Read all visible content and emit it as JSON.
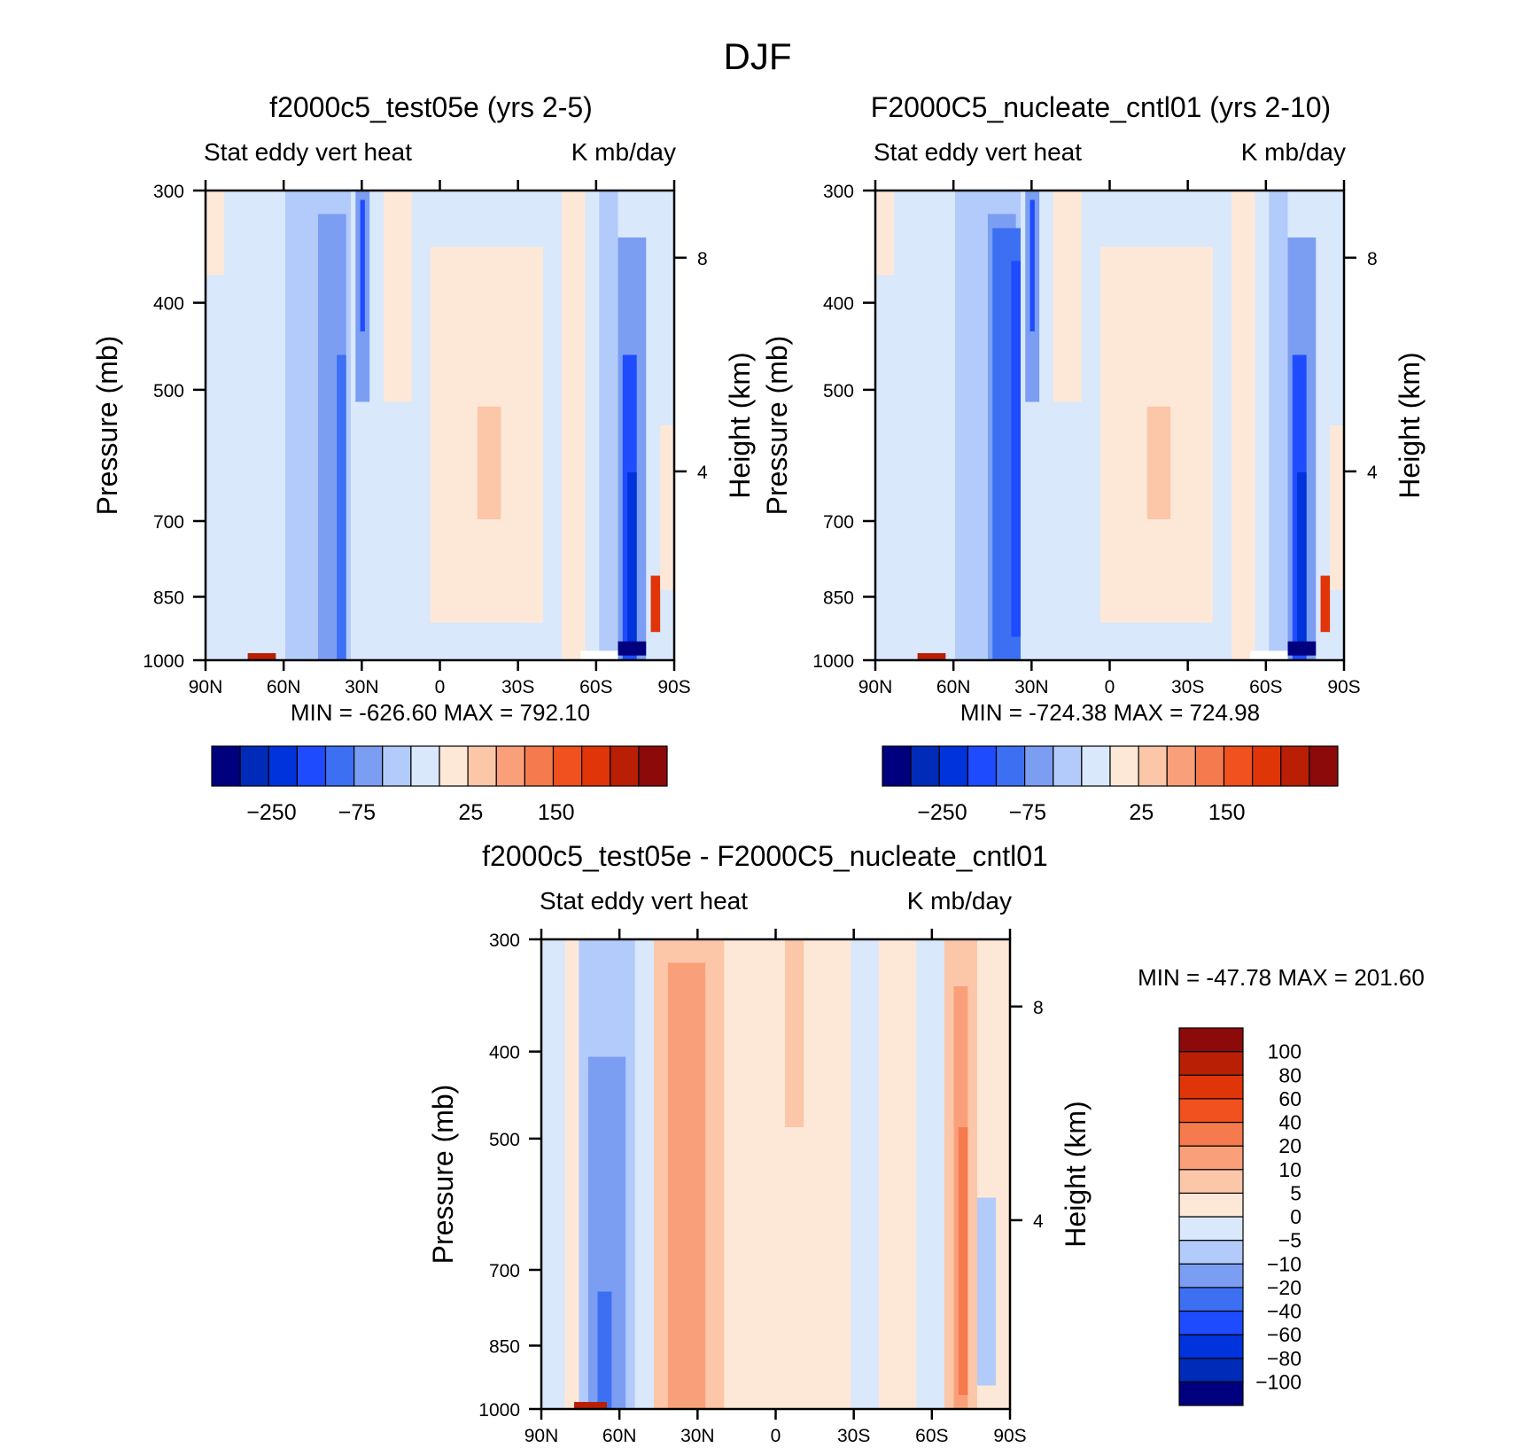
{
  "figure_title": "DJF",
  "colors": {
    "scale": [
      "#00007f",
      "#002bb8",
      "#0033db",
      "#1f4bff",
      "#3d6ff2",
      "#7b9ef2",
      "#b3cbfa",
      "#d9e8fb",
      "#fde8d8",
      "#fcc6a9",
      "#f9a07a",
      "#f57a4e",
      "#f0511f",
      "#df3508",
      "#b81f05",
      "#8c0a0a"
    ]
  },
  "chart_data": [
    {
      "id": "top-left",
      "type": "heatmap",
      "title": "f2000c5_test05e (yrs 2-5)",
      "subtitle_left": "Stat eddy vert heat",
      "subtitle_right": "K mb/day",
      "xlabel": "",
      "ylabel": "Pressure (mb)",
      "ylabel_right": "Height (km)",
      "x_ticks": [
        "90N",
        "60N",
        "30N",
        "0",
        "30S",
        "60S",
        "90S"
      ],
      "y_ticks": [
        300,
        400,
        500,
        700,
        850,
        1000
      ],
      "y_right_ticks": [
        "8",
        "4"
      ],
      "ylim": [
        1000,
        300
      ],
      "min_label": "MIN = -626.60",
      "max_label": "MAX = 792.10",
      "colorbar_labels": [
        "-250",
        "-75",
        "25",
        "150"
      ],
      "zones": [
        {
          "from": "90N",
          "to": "66N",
          "level": "-5 to 0"
        },
        {
          "from": "66N",
          "to": "36N",
          "level": "-20 to -10"
        },
        {
          "from": "36N",
          "to": "29N",
          "level": "-75 to -40"
        },
        {
          "from": "29N",
          "to": "3N",
          "level": "-5 to 0"
        },
        {
          "from": "3N",
          "to": "38S",
          "level": "0 to 25"
        },
        {
          "from": "38S",
          "to": "58S",
          "level": "-5 to 0"
        },
        {
          "from": "58S",
          "to": "80S",
          "level": "-75 to -250"
        },
        {
          "from": "80S",
          "to": "90S",
          "level": "25 to 150"
        }
      ]
    },
    {
      "id": "top-right",
      "type": "heatmap",
      "title": "F2000C5_nucleate_cntl01 (yrs 2-10)",
      "subtitle_left": "Stat eddy vert heat",
      "subtitle_right": "K mb/day",
      "xlabel": "",
      "ylabel": "Pressure (mb)",
      "ylabel_right": "Height (km)",
      "x_ticks": [
        "90N",
        "60N",
        "30N",
        "0",
        "30S",
        "60S",
        "90S"
      ],
      "y_ticks": [
        300,
        400,
        500,
        700,
        850,
        1000
      ],
      "y_right_ticks": [
        "8",
        "4"
      ],
      "ylim": [
        1000,
        300
      ],
      "min_label": "MIN = -724.38",
      "max_label": "MAX = 724.98",
      "colorbar_labels": [
        "-250",
        "-75",
        "25",
        "150"
      ],
      "zones": [
        {
          "from": "90N",
          "to": "66N",
          "level": "-5 to 0"
        },
        {
          "from": "66N",
          "to": "34N",
          "level": "-40 to -20"
        },
        {
          "from": "34N",
          "to": "28N",
          "level": "-75 to -40"
        },
        {
          "from": "28N",
          "to": "3N",
          "level": "-5 to 0"
        },
        {
          "from": "3N",
          "to": "38S",
          "level": "0 to 25"
        },
        {
          "from": "38S",
          "to": "58S",
          "level": "-5 to 0"
        },
        {
          "from": "58S",
          "to": "80S",
          "level": "-75 to -250"
        },
        {
          "from": "80S",
          "to": "90S",
          "level": "25 to 150"
        }
      ]
    },
    {
      "id": "bottom-diff",
      "type": "heatmap",
      "title": "f2000c5_test05e - F2000C5_nucleate_cntl01",
      "subtitle_left": "Stat eddy vert heat",
      "subtitle_right": "K mb/day",
      "xlabel": "",
      "ylabel": "Pressure (mb)",
      "ylabel_right": "Height (km)",
      "x_ticks": [
        "90N",
        "60N",
        "30N",
        "0",
        "30S",
        "60S",
        "90S"
      ],
      "y_ticks": [
        300,
        400,
        500,
        700,
        850,
        1000
      ],
      "y_right_ticks": [
        "8",
        "4"
      ],
      "ylim": [
        1000,
        300
      ],
      "min_label": "MIN = -47.78",
      "max_label": "MAX = 201.60",
      "colorbar_labels": [
        "100",
        "80",
        "60",
        "40",
        "20",
        "10",
        "5",
        "0",
        "-5",
        "-10",
        "-20",
        "-40",
        "-60",
        "-80",
        "-100"
      ],
      "zones": [
        {
          "from": "90N",
          "to": "76N",
          "level": "-5 to 0"
        },
        {
          "from": "76N",
          "to": "56N",
          "level": "-20 to -10"
        },
        {
          "from": "56N",
          "to": "48N",
          "level": "-5 to 0"
        },
        {
          "from": "48N",
          "to": "22N",
          "level": "10 to 20"
        },
        {
          "from": "22N",
          "to": "3N",
          "level": "0 to 5"
        },
        {
          "from": "3N",
          "to": "35S",
          "level": "0 to 5"
        },
        {
          "from": "35S",
          "to": "62S",
          "level": "-5 to 0"
        },
        {
          "from": "62S",
          "to": "80S",
          "level": "20 to 40"
        },
        {
          "from": "80S",
          "to": "90S",
          "level": "-5 to 5"
        }
      ]
    }
  ]
}
